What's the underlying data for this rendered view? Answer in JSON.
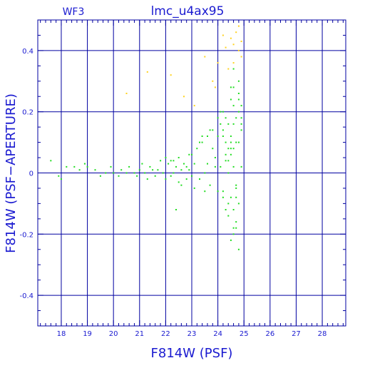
{
  "chart_data": {
    "type": "scatter",
    "title": "lmc_u4ax95",
    "label_top_left": "WF3",
    "xlabel": "F814W (PSF)",
    "ylabel": "F814W (PSF−APERTURE)",
    "xlim": [
      17.1,
      28.9
    ],
    "ylim": [
      -0.5,
      0.5
    ],
    "x_ticks": [
      18,
      19,
      20,
      21,
      22,
      23,
      24,
      25,
      26,
      27,
      28
    ],
    "x_tick_labels": [
      "18",
      "19",
      "20",
      "21",
      "22",
      "23",
      "24",
      "25",
      "26",
      "27",
      "28"
    ],
    "y_ticks": [
      -0.4,
      -0.2,
      0,
      0.2,
      0.4
    ],
    "y_tick_labels": [
      "-0.4",
      "-0.2",
      "0",
      "0.2",
      "0.4"
    ],
    "grid": true,
    "colors": {
      "frame": "#0000a0",
      "text": "#1a1ad0",
      "green": "#22dd22",
      "yellow": "#ffd21f",
      "background": "#ffffff"
    },
    "series": [
      {
        "color": "green",
        "x": [
          17.6,
          17.9,
          18.0,
          18.2,
          18.5,
          18.7,
          18.9,
          19.0,
          19.3,
          19.5,
          19.7,
          19.9,
          20.0,
          20.2,
          20.3,
          20.5,
          20.6,
          20.8,
          20.9,
          21.0,
          21.1,
          21.2,
          21.3,
          21.4,
          21.5,
          21.6,
          21.7,
          21.8,
          21.9,
          22.0,
          22.0,
          22.1,
          22.2,
          22.2,
          22.3,
          22.4,
          22.5,
          22.5,
          22.6,
          22.7,
          22.8,
          22.8,
          22.9,
          23.0,
          23.0,
          23.1,
          23.2,
          23.3,
          23.4,
          23.5,
          23.6,
          23.7,
          23.8,
          23.9,
          24.0,
          24.0,
          24.1,
          24.2,
          24.2,
          24.3,
          24.4,
          24.4,
          24.5,
          24.6,
          24.7,
          24.8,
          24.9,
          22.3,
          22.6,
          22.9,
          23.1,
          23.3,
          23.5,
          23.7,
          23.9,
          24.1,
          24.3,
          24.5,
          24.7,
          24.9,
          24.2,
          24.4,
          24.6,
          24.8,
          24.5,
          24.7,
          24.9,
          24.3,
          24.6,
          24.8,
          24.0,
          24.2,
          24.4,
          24.6,
          24.8,
          24.2,
          24.4,
          24.6,
          24.5,
          24.7,
          24.6,
          24.8,
          24.7,
          24.9,
          24.5,
          24.7,
          22.4,
          23.4,
          23.8,
          24.3,
          24.6,
          24.9,
          23.6,
          24.1,
          24.5,
          24.8,
          24.4,
          24.6,
          24.3,
          24.5,
          24.6,
          24.8,
          24.5,
          24.7
        ],
        "y": [
          0.04,
          -0.01,
          -0.02,
          0.02,
          0.02,
          0.01,
          0.03,
          0.02,
          0.01,
          -0.01,
          0.0,
          0.02,
          0.0,
          -0.01,
          0.01,
          0.0,
          0.02,
          0.0,
          -0.01,
          0.01,
          0.03,
          0.0,
          -0.02,
          0.02,
          0.01,
          -0.01,
          0.01,
          0.04,
          0.0,
          0.05,
          -0.02,
          0.03,
          -0.01,
          0.04,
          0.0,
          0.02,
          -0.03,
          0.05,
          0.01,
          0.03,
          -0.02,
          0.02,
          0.01,
          -0.01,
          0.06,
          0.03,
          0.08,
          -0.02,
          0.1,
          0.0,
          0.12,
          -0.04,
          0.14,
          0.05,
          -0.06,
          0.18,
          0.02,
          -0.08,
          0.2,
          0.04,
          0.16,
          -0.1,
          0.08,
          0.22,
          -0.05,
          0.1,
          0.02,
          0.04,
          -0.04,
          0.06,
          -0.05,
          0.1,
          -0.06,
          0.14,
          0.02,
          0.2,
          -0.12,
          0.24,
          -0.08,
          0.16,
          0.12,
          -0.14,
          0.08,
          0.26,
          0.28,
          -0.18,
          0.18,
          0.06,
          -0.2,
          0.3,
          0.12,
          -0.06,
          0.08,
          0.16,
          -0.1,
          0.14,
          0.0,
          0.02,
          -0.22,
          0.1,
          0.34,
          -0.25,
          0.18,
          0.22,
          0.06,
          -0.16,
          -0.12,
          0.12,
          0.08,
          0.1,
          -0.12,
          0.14,
          0.03,
          0.16,
          -0.08,
          0.24,
          0.04,
          0.28,
          0.18,
          0.12,
          -0.18,
          0.2,
          0.1,
          -0.04
        ]
      },
      {
        "color": "yellow",
        "x": [
          20.5,
          21.3,
          22.2,
          22.7,
          23.1,
          23.5,
          23.8,
          24.0,
          24.3,
          24.5,
          24.7,
          24.8,
          24.9,
          24.4,
          24.6,
          23.9,
          24.2,
          24.8,
          24.6,
          24.9
        ],
        "y": [
          0.26,
          0.33,
          0.32,
          0.25,
          0.22,
          0.38,
          0.3,
          0.36,
          0.41,
          0.44,
          0.46,
          0.4,
          0.38,
          0.34,
          0.42,
          0.28,
          0.45,
          0.48,
          0.36,
          0.43
        ]
      }
    ]
  }
}
